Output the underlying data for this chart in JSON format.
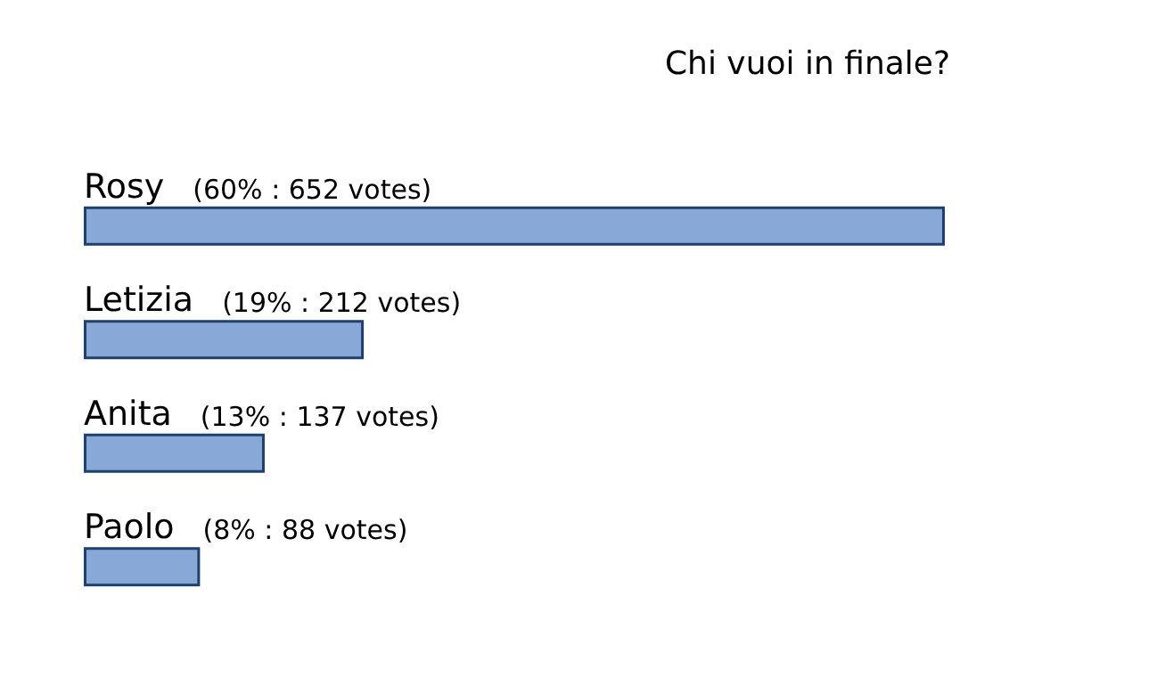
{
  "chart_data": {
    "type": "bar",
    "orientation": "horizontal",
    "title": "Chi vuoi in finale?",
    "categories": [
      "Rosy",
      "Letizia",
      "Anita",
      "Paolo"
    ],
    "values": [
      652,
      212,
      137,
      88
    ],
    "value_labels": [
      "(60% : 652 votes)",
      "(19% : 212 votes)",
      "(13% : 137 votes)",
      "(8% : 88 votes)"
    ],
    "color": "#88a9d8"
  }
}
